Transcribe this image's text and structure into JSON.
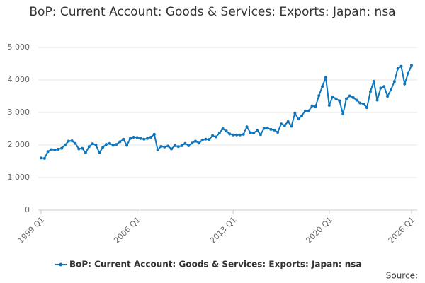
{
  "chart_data": {
    "type": "line",
    "title": "BoP: Current Account: Goods & Services: Exports: Japan: nsa",
    "source": "Source:",
    "categories": [
      "1999 Q1",
      null,
      null,
      null,
      null,
      null,
      null,
      null,
      null,
      null,
      null,
      null,
      null,
      null,
      null,
      null,
      null,
      null,
      null,
      null,
      null,
      null,
      null,
      null,
      null,
      null,
      null,
      null,
      "2006 Q1",
      null,
      null,
      null,
      null,
      null,
      null,
      null,
      null,
      null,
      null,
      null,
      null,
      null,
      null,
      null,
      null,
      null,
      null,
      null,
      null,
      null,
      null,
      null,
      null,
      null,
      null,
      null,
      "2013 Q1",
      null,
      null,
      null,
      null,
      null,
      null,
      null,
      null,
      null,
      null,
      null,
      null,
      null,
      null,
      null,
      null,
      null,
      null,
      null,
      null,
      null,
      null,
      null,
      null,
      null,
      null,
      null,
      "2020 Q1",
      null,
      null,
      null,
      null,
      null,
      null,
      null,
      null,
      null,
      null,
      null,
      null,
      null,
      null,
      null,
      null,
      null,
      null,
      null,
      null,
      null,
      null,
      null,
      "2026 Q1"
    ],
    "series": [
      {
        "name": "BoP: Current Account: Goods & Services: Exports: Japan: nsa",
        "color": "#0f75bc",
        "values": [
          1600,
          1590,
          1800,
          1860,
          1850,
          1870,
          1900,
          2000,
          2120,
          2130,
          2050,
          1880,
          1900,
          1760,
          1950,
          2040,
          2000,
          1760,
          1930,
          2020,
          2050,
          1990,
          2020,
          2100,
          2180,
          1990,
          2200,
          2240,
          2230,
          2200,
          2180,
          2200,
          2240,
          2330,
          1850,
          1960,
          1940,
          1970,
          1880,
          1980,
          1950,
          1980,
          2050,
          1980,
          2060,
          2120,
          2060,
          2150,
          2180,
          2170,
          2290,
          2250,
          2370,
          2500,
          2430,
          2340,
          2310,
          2310,
          2310,
          2330,
          2560,
          2380,
          2370,
          2450,
          2320,
          2510,
          2520,
          2480,
          2460,
          2390,
          2650,
          2600,
          2720,
          2580,
          2980,
          2800,
          2900,
          3050,
          3050,
          3200,
          3180,
          3520,
          3800,
          4080,
          3220,
          3480,
          3420,
          3360,
          2950,
          3420,
          3510,
          3460,
          3380,
          3290,
          3260,
          3150,
          3640,
          3960,
          3380,
          3750,
          3800,
          3500,
          3700,
          3950,
          4350,
          4420,
          3880,
          4200,
          4450
        ]
      }
    ],
    "ylim": [
      0,
      5000
    ],
    "yticks": [
      0,
      {
        "value": 1000,
        "label": "1 000"
      },
      {
        "value": 2000,
        "label": "2 000"
      },
      {
        "value": 3000,
        "label": "3 000"
      },
      {
        "value": 4000,
        "label": "4 000"
      },
      {
        "value": 5000,
        "label": "5 000"
      }
    ],
    "grid": true
  }
}
